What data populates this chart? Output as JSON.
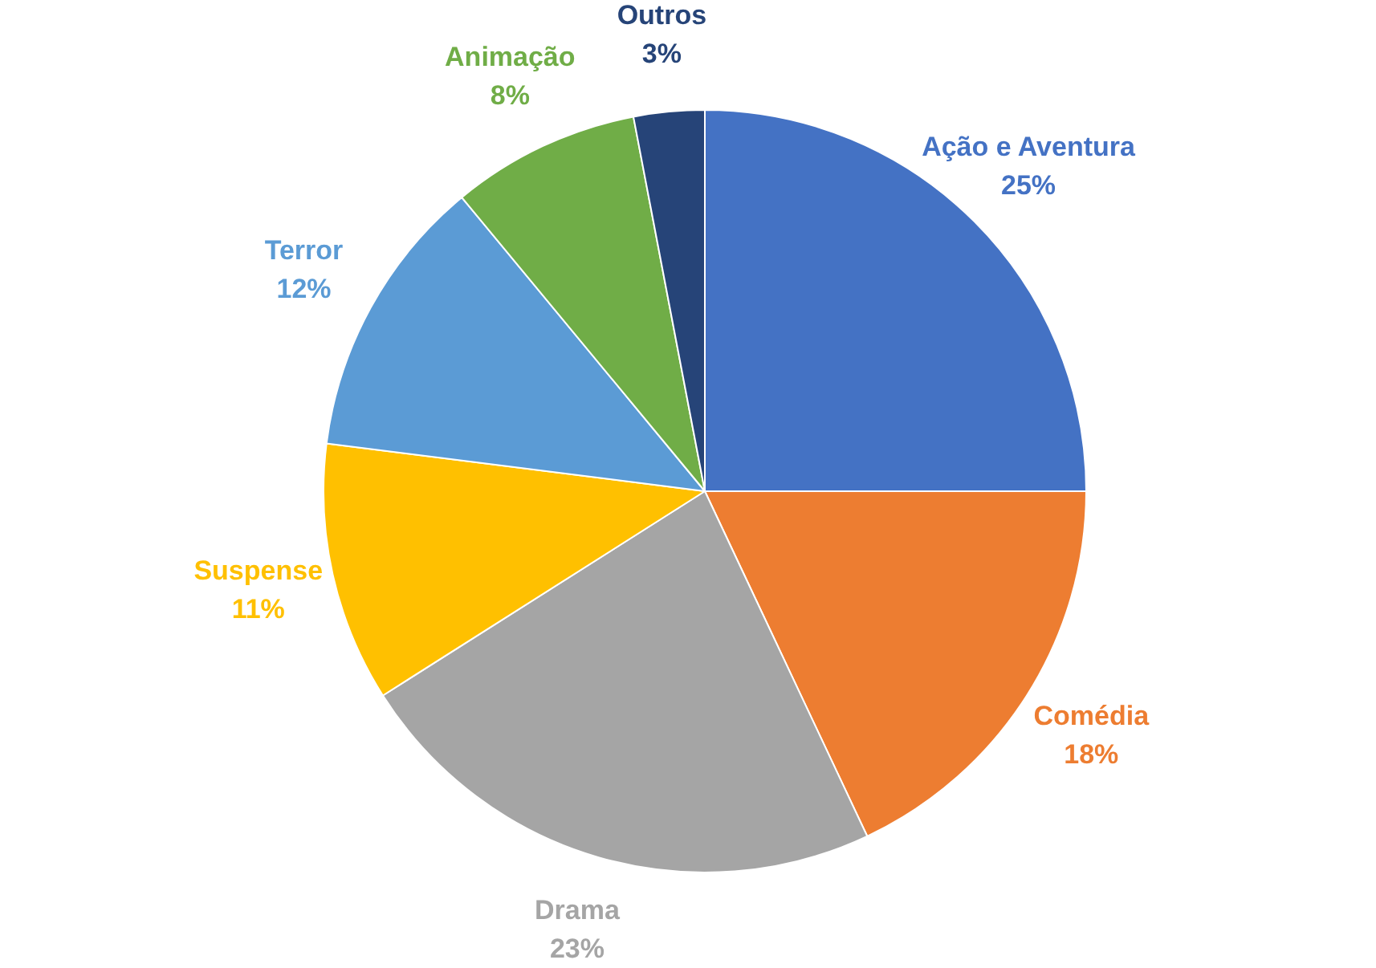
{
  "chart_data": {
    "type": "pie",
    "categories": [
      "Ação e Aventura",
      "Comédia",
      "Drama",
      "Suspense",
      "Terror",
      "Animação",
      "Outros"
    ],
    "values": [
      25,
      18,
      23,
      11,
      12,
      8,
      3
    ],
    "value_labels": [
      "25%",
      "18%",
      "23%",
      "11%",
      "12%",
      "8%",
      "3%"
    ],
    "colors": [
      "#4472c4",
      "#ed7d31",
      "#a5a5a5",
      "#ffc000",
      "#5b9bd5",
      "#70ad47",
      "#264478"
    ],
    "legend": false
  }
}
